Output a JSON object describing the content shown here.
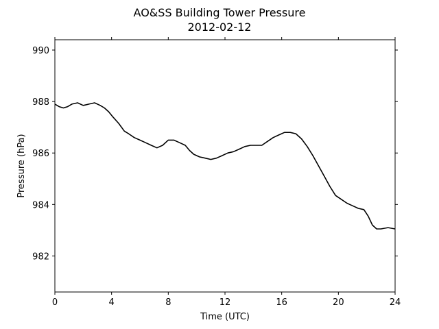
{
  "chart_data": {
    "type": "line",
    "title": "AO&SS Building Tower Pressure",
    "subtitle": "2012-02-12",
    "xlabel": "Time (UTC)",
    "ylabel": "Pressure (hPa)",
    "xlim": [
      0,
      24
    ],
    "ylim": [
      980.6,
      990.4
    ],
    "xticks": [
      0,
      4,
      8,
      12,
      16,
      20,
      24
    ],
    "yticks": [
      982,
      984,
      986,
      988,
      990
    ],
    "grid": false,
    "legend": "none",
    "series": [
      {
        "color": "#000000",
        "x": [
          0,
          0.3,
          0.6,
          0.9,
          1.2,
          1.6,
          2.0,
          2.4,
          2.8,
          3.2,
          3.5,
          3.8,
          4.1,
          4.5,
          4.9,
          5.2,
          5.6,
          6.0,
          6.4,
          6.8,
          7.2,
          7.6,
          8.0,
          8.4,
          8.8,
          9.2,
          9.5,
          9.8,
          10.2,
          10.6,
          11.0,
          11.4,
          11.8,
          12.2,
          12.6,
          13.0,
          13.4,
          13.8,
          14.2,
          14.6,
          15.0,
          15.4,
          15.8,
          16.2,
          16.6,
          17.0,
          17.4,
          17.8,
          18.2,
          18.6,
          19.0,
          19.4,
          19.8,
          20.2,
          20.6,
          21.0,
          21.4,
          21.8,
          22.1,
          22.4,
          22.7,
          23.0,
          23.5,
          24.0
        ],
        "y": [
          987.9,
          987.8,
          987.75,
          987.8,
          987.9,
          987.95,
          987.85,
          987.9,
          987.95,
          987.85,
          987.75,
          987.6,
          987.4,
          987.15,
          986.85,
          986.75,
          986.6,
          986.5,
          986.4,
          986.3,
          986.2,
          986.3,
          986.5,
          986.5,
          986.4,
          986.3,
          986.1,
          985.95,
          985.85,
          985.8,
          985.75,
          985.8,
          985.9,
          986.0,
          986.05,
          986.15,
          986.25,
          986.3,
          986.3,
          986.3,
          986.45,
          986.6,
          986.7,
          986.8,
          986.8,
          986.75,
          986.55,
          986.25,
          985.9,
          985.5,
          985.1,
          984.7,
          984.35,
          984.2,
          984.05,
          983.95,
          983.85,
          983.8,
          983.55,
          983.2,
          983.05,
          983.05,
          983.1,
          983.05
        ]
      }
    ]
  }
}
